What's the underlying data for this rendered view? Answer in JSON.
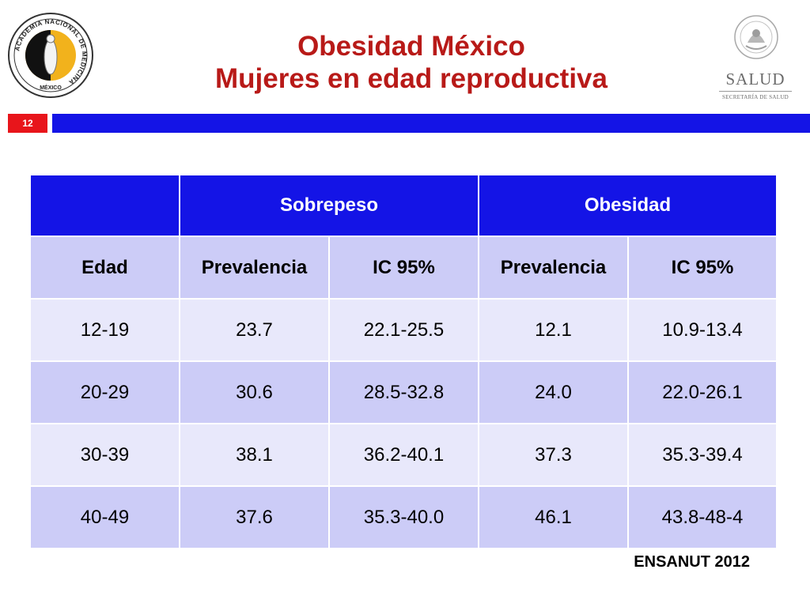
{
  "header": {
    "title_line1": "Obesidad México",
    "title_line2": "Mujeres en edad reproductiva",
    "slide_number": "12",
    "logo_left": {
      "icon": "academia-nacional-medicina-seal",
      "ring_text": "ACADEMIA NACIONAL DE MEDICINA",
      "bottom_text": "MÉXICO"
    },
    "logo_right": {
      "icon": "mexico-coat-of-arms",
      "brand": "SALUD",
      "subtitle": "SECRETARÍA DE SALUD"
    }
  },
  "table": {
    "group_headers": [
      "",
      "Sobrepeso",
      "Obesidad"
    ],
    "column_headers": [
      "Edad",
      "Prevalencia",
      "IC 95%",
      "Prevalencia",
      "IC 95%"
    ],
    "rows": [
      [
        "12-19",
        "23.7",
        "22.1-25.5",
        "12.1",
        "10.9-13.4"
      ],
      [
        "20-29",
        "30.6",
        "28.5-32.8",
        "24.0",
        "22.0-26.1"
      ],
      [
        "30-39",
        "38.1",
        "36.2-40.1",
        "37.3",
        "35.3-39.4"
      ],
      [
        "40-49",
        "37.6",
        "35.3-40.0",
        "46.1",
        "43.8-48-4"
      ]
    ]
  },
  "footer": {
    "source": "ENSANUT 2012"
  },
  "colors": {
    "title": "#b81a18",
    "accent_blue": "#1414e6",
    "number_red": "#e8151b",
    "row_dark": "#ccccf7",
    "row_light": "#e8e8fb"
  }
}
